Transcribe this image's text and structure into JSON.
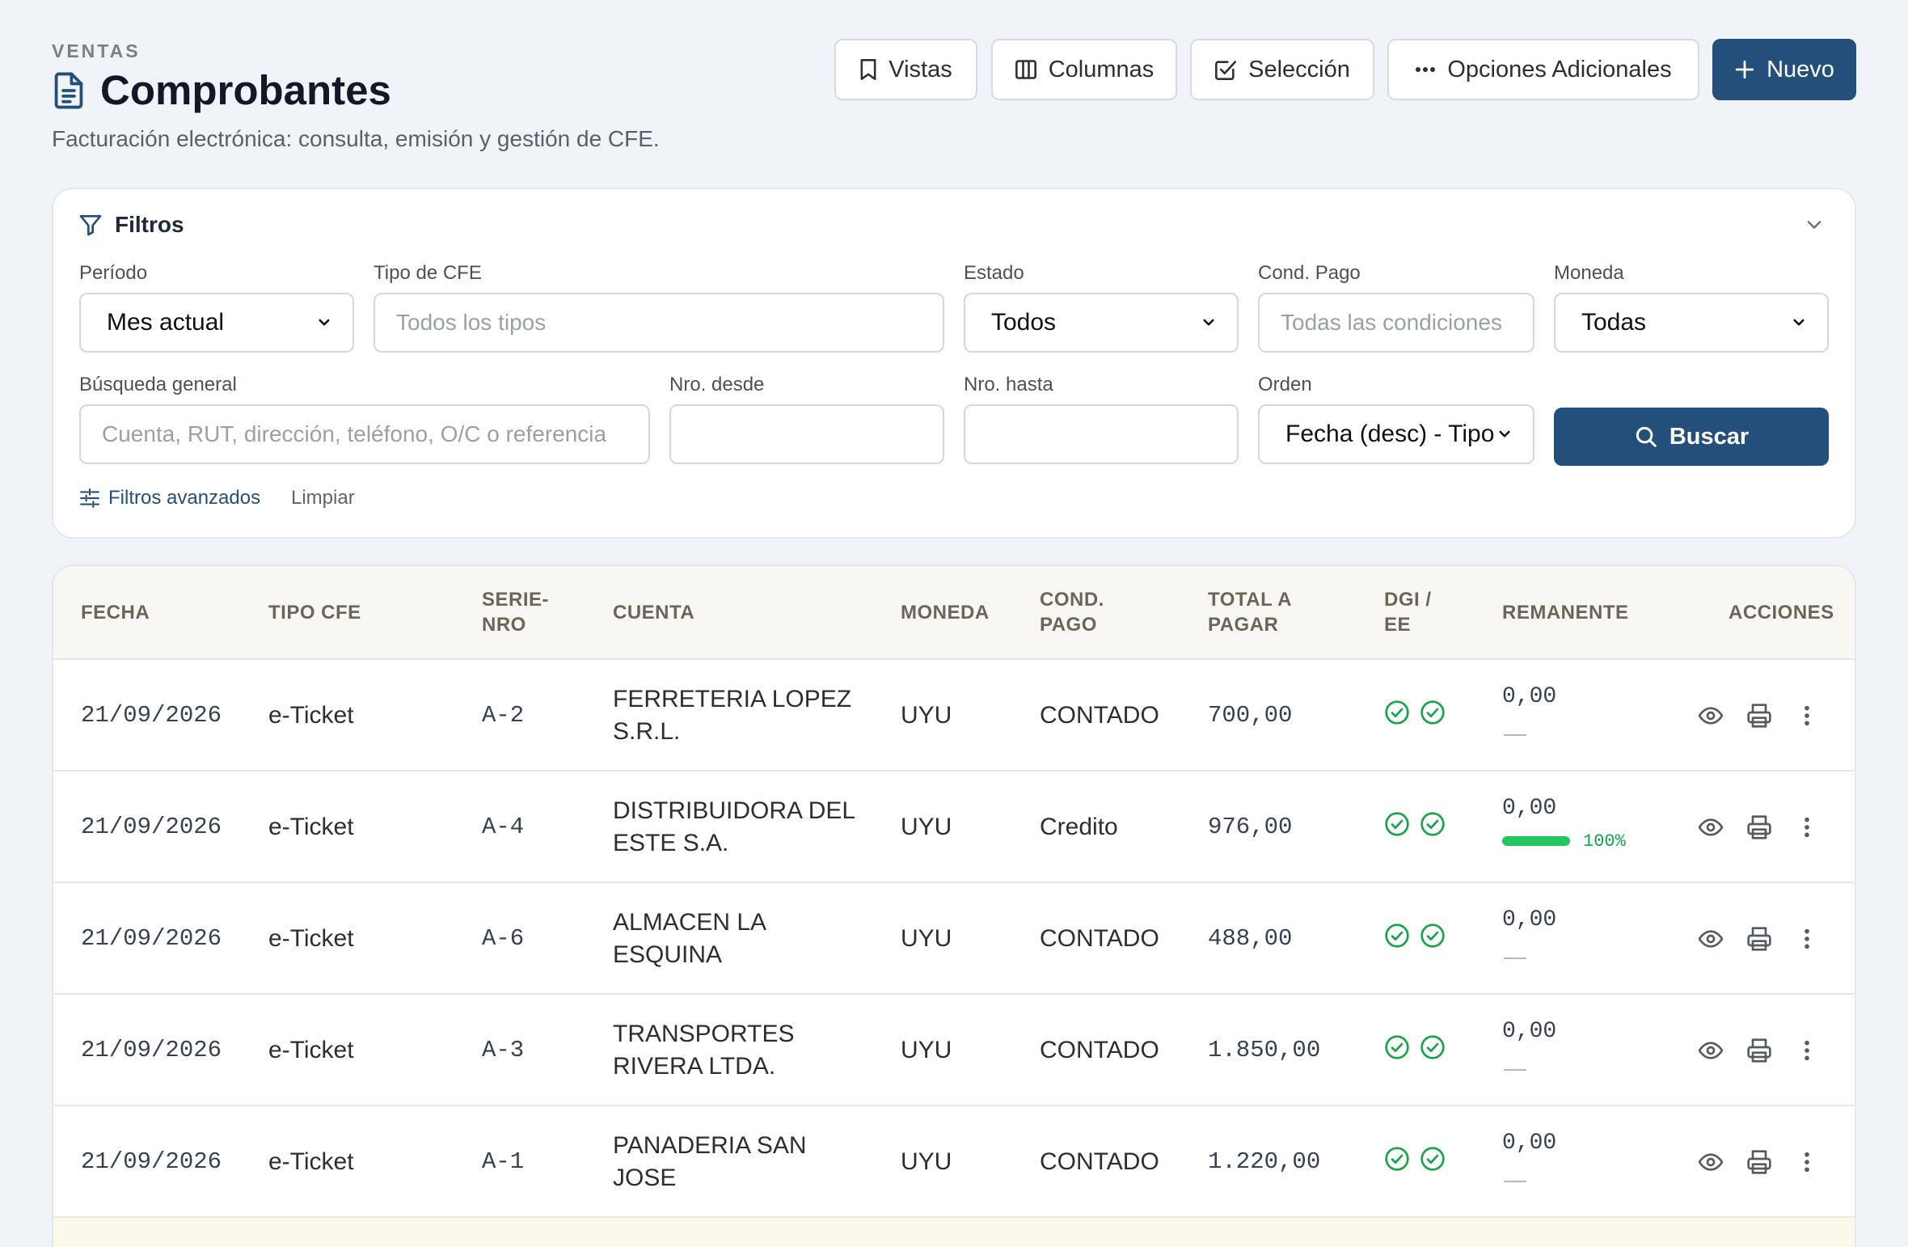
{
  "header": {
    "section": "VENTAS",
    "title": "Comprobantes",
    "subtitle": "Facturación electrónica: consulta, emisión y gestión de CFE."
  },
  "toolbar": {
    "views": "Vistas",
    "columns": "Columnas",
    "selection": "Selección",
    "more": "Opciones Adicionales",
    "new": "Nuevo"
  },
  "filters": {
    "title": "Filtros",
    "period_label": "Período",
    "period_value": "Mes actual",
    "cfe_type_label": "Tipo de CFE",
    "cfe_type_placeholder": "Todos los tipos",
    "status_label": "Estado",
    "status_value": "Todos",
    "payment_label": "Cond. Pago",
    "payment_placeholder": "Todas las condiciones",
    "currency_label": "Moneda",
    "currency_value": "Todas",
    "search_label": "Búsqueda general",
    "search_placeholder": "Cuenta, RUT, dirección, teléfono, O/C o referencia",
    "from_label": "Nro. desde",
    "to_label": "Nro. hasta",
    "order_label": "Orden",
    "order_value": "Fecha (desc) - Tipo",
    "search_button": "Buscar",
    "advanced": "Filtros avanzados",
    "clear": "Limpiar"
  },
  "table": {
    "columns": [
      "FECHA",
      "TIPO CFE",
      "SERIE-\nNRO",
      "CUENTA",
      "MONEDA",
      "COND.\nPAGO",
      "TOTAL A\nPAGAR",
      "DGI /\nEE",
      "REMANENTE",
      "ACCIONES"
    ],
    "rows": [
      {
        "fecha": "21/09/2026",
        "tipo": "e-Ticket",
        "serie": "A-2",
        "cuenta": "FERRETERIA LOPEZ\nS.R.L.",
        "moneda": "UYU",
        "cond": "CONTADO",
        "total": "700,00",
        "remanente": "0,00",
        "progress": null
      },
      {
        "fecha": "21/09/2026",
        "tipo": "e-Ticket",
        "serie": "A-4",
        "cuenta": "DISTRIBUIDORA DEL\nESTE S.A.",
        "moneda": "UYU",
        "cond": "Credito",
        "total": "976,00",
        "remanente": "0,00",
        "progress": 100,
        "progress_label": "100%"
      },
      {
        "fecha": "21/09/2026",
        "tipo": "e-Ticket",
        "serie": "A-6",
        "cuenta": "ALMACEN LA\nESQUINA",
        "moneda": "UYU",
        "cond": "CONTADO",
        "total": "488,00",
        "remanente": "0,00",
        "progress": null
      },
      {
        "fecha": "21/09/2026",
        "tipo": "e-Ticket",
        "serie": "A-3",
        "cuenta": "TRANSPORTES\nRIVERA LTDA.",
        "moneda": "UYU",
        "cond": "CONTADO",
        "total": "1.850,00",
        "remanente": "0,00",
        "progress": null
      },
      {
        "fecha": "21/09/2026",
        "tipo": "e-Ticket",
        "serie": "A-1",
        "cuenta": "PANADERIA SAN\nJOSE",
        "moneda": "UYU",
        "cond": "CONTADO",
        "total": "1.220,00",
        "remanente": "0,00",
        "progress": null
      }
    ]
  },
  "colors": {
    "primary": "#234f7a",
    "success": "#16a34a",
    "background": "#f0f3f8"
  }
}
